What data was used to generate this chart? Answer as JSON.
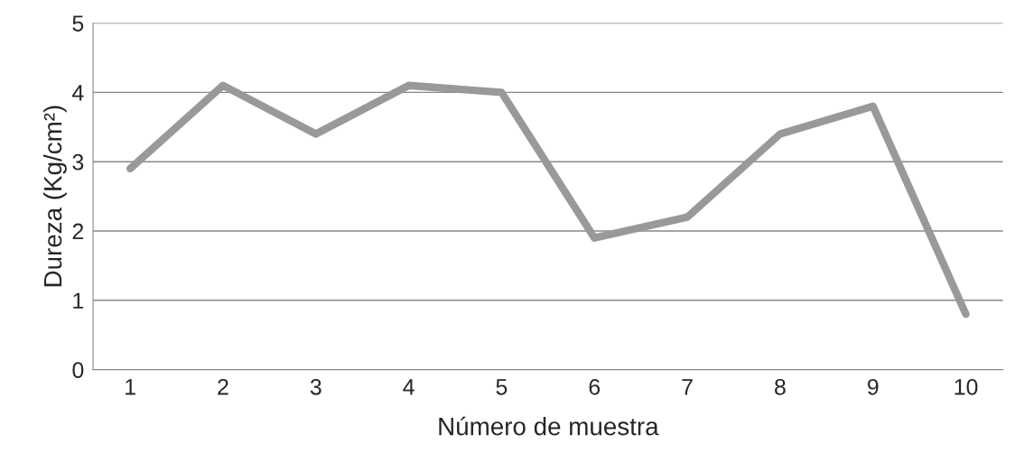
{
  "chart_data": {
    "type": "line",
    "xlabel": "Número de muestra",
    "ylabel": "Dureza (Kg/cm²)",
    "categories": [
      "1",
      "2",
      "3",
      "4",
      "5",
      "6",
      "7",
      "8",
      "9",
      "10"
    ],
    "series": [
      {
        "color": "#999999",
        "values": [
          2.9,
          4.1,
          3.4,
          4.1,
          4.0,
          1.9,
          2.2,
          3.4,
          3.8,
          0.8
        ]
      }
    ],
    "ylim": [
      0,
      5
    ],
    "yticks": [
      0,
      1,
      2,
      3,
      4,
      5
    ],
    "grid": "y",
    "marker": "none",
    "line_style": "solid"
  }
}
